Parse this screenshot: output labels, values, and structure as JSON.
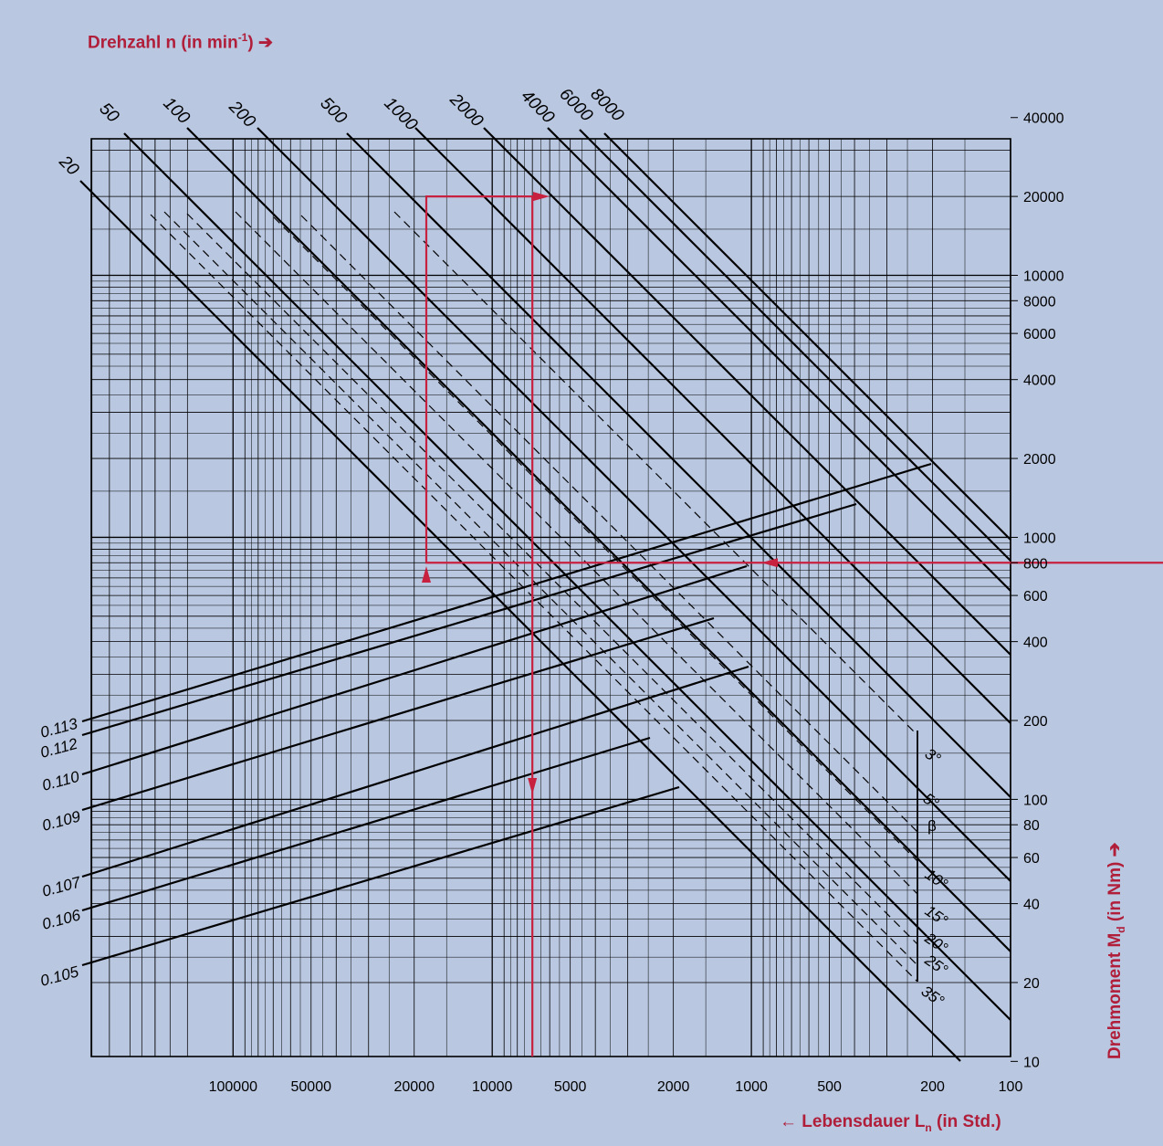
{
  "chart_data": {
    "type": "line",
    "labels": {
      "top": {
        "prefix": "Drehzahl n (in min",
        "sup": "-1",
        "suffix": ") ➔"
      },
      "bottom": {
        "prefix": "← Lebensdauer L",
        "sub": "n",
        "suffix": " (in Std.)"
      },
      "right": {
        "prefix": "Drehmoment M",
        "sub": "d",
        "suffix": " (in Nm) ➔"
      }
    },
    "x_axis": {
      "label": "Lebensdauer Ln (in Std.)",
      "scale": "log-reversed",
      "range": [
        250000,
        100
      ],
      "ticks": [
        "100000",
        "50000",
        "20000",
        "10000",
        "5000",
        "2000",
        "1000",
        "500",
        "200",
        "100"
      ]
    },
    "y_axis": {
      "label": "Drehmoment Md (in Nm)",
      "scale": "log",
      "range": [
        10,
        100000
      ],
      "ticks": [
        "10",
        "20",
        "40",
        "60",
        "80",
        "100",
        "200",
        "400",
        "600",
        "800",
        "1000",
        "2000",
        "4000",
        "6000",
        "8000",
        "10000",
        "20000",
        "40000"
      ]
    },
    "speed_lines": {
      "label": "Drehzahl n (in min-1)",
      "values": [
        "20",
        "50",
        "100",
        "200",
        "500",
        "1000",
        "2000",
        "4000",
        "6000",
        "8000"
      ]
    },
    "coefficient_lines": {
      "values": [
        "0.113",
        "0.112",
        "0.110",
        "0.109",
        "0.107",
        "0.106",
        "0.105"
      ]
    },
    "angle_lines": {
      "axis_label": "β",
      "values": [
        "3°",
        "5°",
        "10°",
        "15°",
        "20°",
        "25°",
        "35°"
      ]
    },
    "example_path": {
      "torque_nm": 800,
      "speed_min": 1000,
      "coefficient": "0.112",
      "torque_2_nm": 20000,
      "life_hours": 7000,
      "color": "#c8203f"
    }
  }
}
